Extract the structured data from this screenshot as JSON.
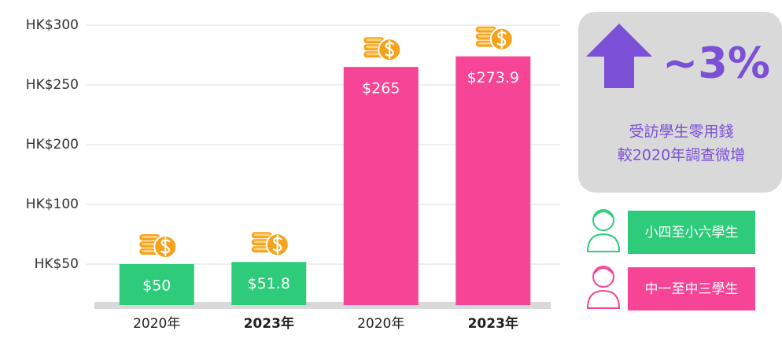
{
  "chart_data": {
    "type": "bar",
    "categories": [
      "2020年",
      "2023年",
      "2020年",
      "2023年"
    ],
    "series": [
      {
        "name": "小四至小六學生",
        "color": "#2ecc7a",
        "values": [
          50,
          51.8,
          null,
          null
        ],
        "value_labels": [
          "$50",
          "$51.8",
          null,
          null
        ]
      },
      {
        "name": "中一至中三學生",
        "color": "#f64596",
        "values": [
          null,
          null,
          265,
          273.9
        ],
        "value_labels": [
          null,
          null,
          "$265",
          "$273.9"
        ]
      }
    ],
    "ylim": [
      0,
      300
    ],
    "yticks": [
      {
        "value": 50,
        "label": "HK$50"
      },
      {
        "value": 100,
        "label": "HK$100"
      },
      {
        "value": 200,
        "label": "HK$200"
      },
      {
        "value": 250,
        "label": "HK$250"
      },
      {
        "value": 300,
        "label": "HK$300"
      }
    ],
    "grid": true,
    "annotation": {
      "headline": "~3%",
      "lines": [
        "受訪學生零用錢",
        "較2020年調查微增"
      ],
      "color": "#7b4fd6"
    }
  }
}
